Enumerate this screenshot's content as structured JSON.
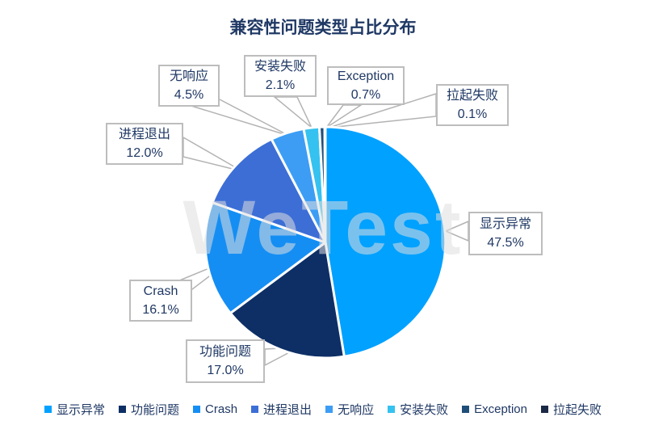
{
  "page": {
    "title": "兼容性问题类型占比分布",
    "watermark": "WeTest"
  },
  "chart_data": {
    "type": "pie",
    "title": "兼容性问题类型占比分布",
    "legend_position": "bottom",
    "unit": "%",
    "categories": [
      "显示异常",
      "功能问题",
      "Crash",
      "进程退出",
      "无响应",
      "安装失败",
      "Exception",
      "拉起失败"
    ],
    "values": [
      47.5,
      17.0,
      16.1,
      12.0,
      4.5,
      2.1,
      0.7,
      0.1
    ],
    "slices": [
      {
        "label": "显示异常",
        "value": 47.5,
        "pct_label": "47.5%",
        "color": "#00a1ff"
      },
      {
        "label": "功能问题",
        "value": 17.0,
        "pct_label": "17.0%",
        "color": "#0d2f66"
      },
      {
        "label": "Crash",
        "value": 16.1,
        "pct_label": "16.1%",
        "color": "#158ef3"
      },
      {
        "label": "进程退出",
        "value": 12.0,
        "pct_label": "12.0%",
        "color": "#3c6ed6"
      },
      {
        "label": "无响应",
        "value": 4.5,
        "pct_label": "4.5%",
        "color": "#3d9df5"
      },
      {
        "label": "安装失败",
        "value": 2.1,
        "pct_label": "2.1%",
        "color": "#35c2f0"
      },
      {
        "label": "Exception",
        "value": 0.7,
        "pct_label": "0.7%",
        "color": "#1f4e79"
      },
      {
        "label": "拉起失败",
        "value": 0.1,
        "pct_label": "0.1%",
        "color": "#1b2947"
      }
    ]
  },
  "colors": {
    "title_text": "#1f3864",
    "callout_border": "#bdbdbd",
    "leader_line": "#b3b3b3",
    "background": "#ffffff"
  }
}
